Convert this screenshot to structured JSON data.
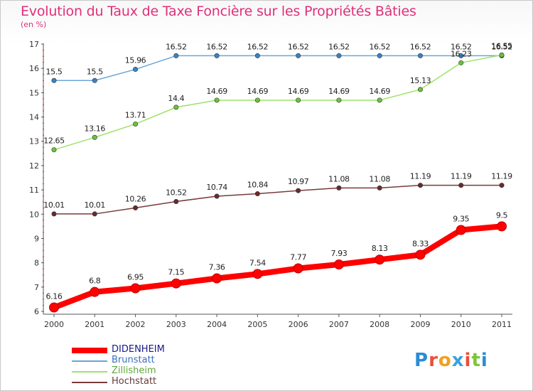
{
  "title": "Evolution du Taux de Taxe Foncière sur les Propriétés Bâties",
  "subtitle": "(en %)",
  "logo": {
    "text": "Proxiti",
    "letter_colors": [
      "#2a8dd4",
      "#e8503a",
      "#f0a020",
      "#3aa0e0",
      "#e8503a",
      "#7cc43c",
      "#2a8dd4"
    ]
  },
  "chart_data": {
    "type": "line",
    "title": "Evolution du Taux de Taxe Foncière sur les Propriétés Bâties",
    "ylabel": "(en %)",
    "xlabel": "",
    "ylim": [
      6,
      17
    ],
    "yticks": [
      6,
      7,
      8,
      9,
      10,
      11,
      12,
      13,
      14,
      15,
      16,
      17
    ],
    "categories": [
      "2000",
      "2001",
      "2002",
      "2003",
      "2004",
      "2005",
      "2006",
      "2007",
      "2008",
      "2009",
      "2010",
      "2011"
    ],
    "grid": false,
    "legend_position": "bottom-left",
    "series": [
      {
        "name": "DIDENHEIM",
        "color": "#ff0000",
        "marker_color": "#ff0000",
        "text_color": "#1a1a8a",
        "thick": true,
        "values": [
          6.16,
          6.8,
          6.95,
          7.15,
          7.36,
          7.54,
          7.77,
          7.93,
          8.13,
          8.33,
          9.35,
          9.5
        ],
        "labels": [
          "6.16",
          "6.8",
          "6.95",
          "7.15",
          "7.36",
          "7.54",
          "7.77",
          "7.93",
          "8.13",
          "8.33",
          "9.35",
          "9.5"
        ]
      },
      {
        "name": "Brunstatt",
        "color": "#6aa6d8",
        "marker_color": "#3b82c4",
        "text_color": "#3b6fbd",
        "thick": false,
        "values": [
          15.5,
          15.5,
          15.96,
          16.52,
          16.52,
          16.52,
          16.52,
          16.52,
          16.52,
          16.52,
          16.52,
          16.52
        ],
        "labels": [
          "15.5",
          "15.5",
          "15.96",
          "16.52",
          "16.52",
          "16.52",
          "16.52",
          "16.52",
          "16.52",
          "16.52",
          "16.52",
          "16.52"
        ]
      },
      {
        "name": "Zillisheim",
        "color": "#9ee36a",
        "marker_color": "#6cc23a",
        "text_color": "#5fa83a",
        "thick": false,
        "values": [
          12.65,
          13.16,
          13.71,
          14.4,
          14.69,
          14.69,
          14.69,
          14.69,
          14.69,
          15.13,
          16.23,
          16.55
        ],
        "labels": [
          "12.65",
          "13.16",
          "13.71",
          "14.4",
          "14.69",
          "14.69",
          "14.69",
          "14.69",
          "14.69",
          "15.13",
          "16.23",
          "16.55"
        ]
      },
      {
        "name": "Hochstatt",
        "color": "#7a3a3a",
        "marker_color": "#6a2a2a",
        "text_color": "#6a3a3a",
        "thick": false,
        "values": [
          10.01,
          10.01,
          10.26,
          10.52,
          10.74,
          10.84,
          10.97,
          11.08,
          11.08,
          11.19,
          11.19,
          11.19
        ],
        "labels": [
          "10.01",
          "10.01",
          "10.26",
          "10.52",
          "10.74",
          "10.84",
          "10.97",
          "11.08",
          "11.08",
          "11.19",
          "11.19",
          "11.19"
        ]
      }
    ]
  }
}
